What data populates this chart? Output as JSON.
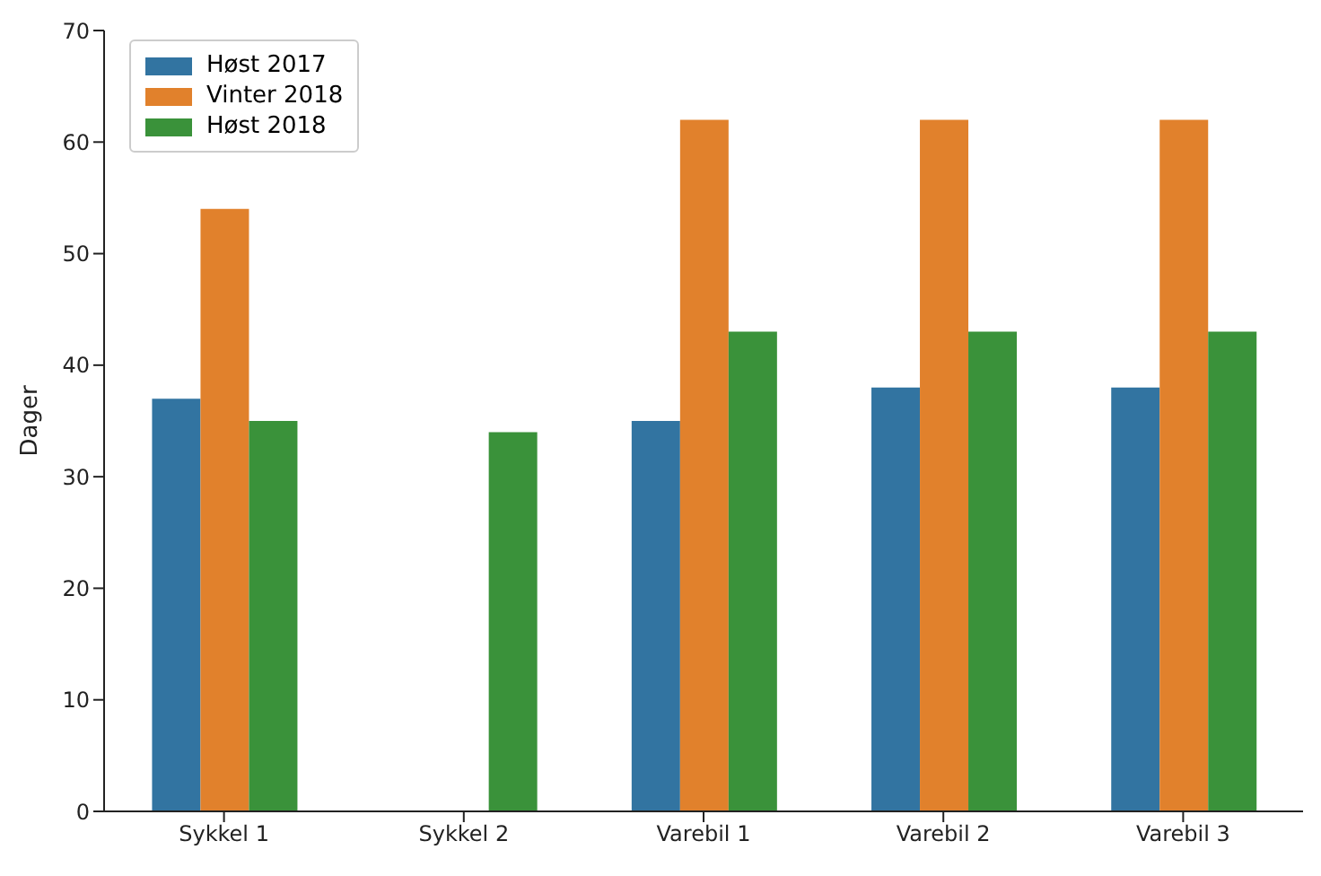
{
  "chart_data": {
    "type": "bar",
    "ylabel": "Dager",
    "categories": [
      "Sykkel 1",
      "Sykkel 2",
      "Varebil 1",
      "Varebil 2",
      "Varebil 3"
    ],
    "series": [
      {
        "name": "Høst 2017",
        "color": "#3274a1",
        "values": [
          37,
          null,
          35,
          38,
          38
        ]
      },
      {
        "name": "Vinter 2018",
        "color": "#e1812c",
        "values": [
          54,
          null,
          62,
          62,
          62
        ]
      },
      {
        "name": "Høst 2018",
        "color": "#3a923a",
        "values": [
          35,
          34,
          43,
          43,
          43
        ]
      }
    ],
    "ylim": [
      0,
      70
    ],
    "yticks": [
      0,
      10,
      20,
      30,
      40,
      50,
      60,
      70
    ],
    "grid": false,
    "legend": "top left"
  }
}
